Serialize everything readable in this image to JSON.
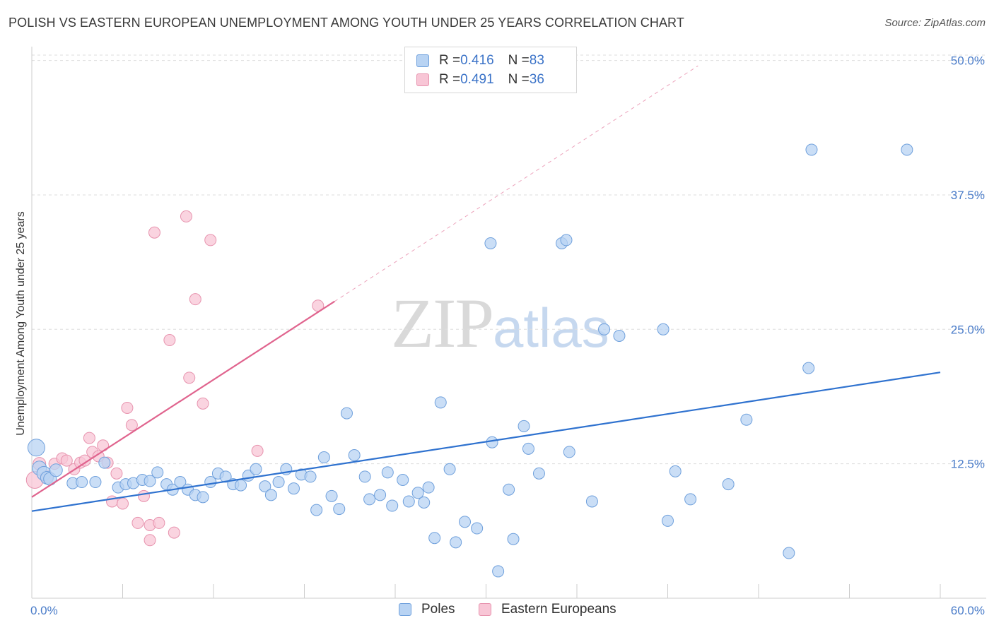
{
  "header": {
    "title": "POLISH VS EASTERN EUROPEAN UNEMPLOYMENT AMONG YOUTH UNDER 25 YEARS CORRELATION CHART",
    "source": "Source: ZipAtlas.com"
  },
  "watermark": {
    "part_a": "ZIP",
    "part_b": "atlas"
  },
  "legend_top": {
    "rows": [
      {
        "r_label": "R = ",
        "r_value": "0.416",
        "n_label": "N = ",
        "n_value": "83"
      },
      {
        "r_label": "R = ",
        "r_value": "0.491",
        "n_label": "N = ",
        "n_value": "36"
      }
    ]
  },
  "legend_bottom": {
    "items": [
      "Poles",
      "Eastern Europeans"
    ]
  },
  "colors": {
    "poles_fill": "#b8d3f3",
    "poles_stroke": "#6fa0dc",
    "poles_line": "#2f72cf",
    "ee_fill": "#f8c6d6",
    "ee_stroke": "#e793ae",
    "ee_line": "#e0648e",
    "grid": "#dddddd",
    "tick_text": "#4a7cc9"
  },
  "chart_data": {
    "type": "scatter",
    "title": "POLISH VS EASTERN EUROPEAN UNEMPLOYMENT AMONG YOUTH UNDER 25 YEARS CORRELATION CHART",
    "xlabel": "",
    "ylabel": "Unemployment Among Youth under 25 years",
    "xlim": [
      0,
      60
    ],
    "ylim": [
      0,
      50.5
    ],
    "x_tick_labels": {
      "min": "0.0%",
      "max": "60.0%"
    },
    "y_ticks": [
      {
        "value": 12.5,
        "label": "12.5%"
      },
      {
        "value": 25.0,
        "label": "25.0%"
      },
      {
        "value": 37.5,
        "label": "37.5%"
      },
      {
        "value": 50.0,
        "label": "50.0%"
      }
    ],
    "grid": true,
    "legend_position": "top-center",
    "series": [
      {
        "name": "Poles",
        "r": 0.416,
        "n": 83,
        "trend": {
          "x0": 0,
          "y0": 8.1,
          "x1": 60,
          "y1": 21.0
        },
        "points": [
          [
            0.3,
            14.0,
            12
          ],
          [
            0.5,
            12.1,
            10
          ],
          [
            0.8,
            11.6,
            10
          ],
          [
            1.0,
            11.2,
            9
          ],
          [
            1.2,
            11.1,
            9
          ],
          [
            1.6,
            11.9,
            9
          ],
          [
            2.7,
            10.7,
            8
          ],
          [
            3.3,
            10.8,
            8
          ],
          [
            4.2,
            10.8,
            8
          ],
          [
            4.8,
            12.6,
            8
          ],
          [
            5.7,
            10.3,
            8
          ],
          [
            6.2,
            10.6,
            8
          ],
          [
            6.7,
            10.7,
            8
          ],
          [
            7.3,
            11.0,
            8
          ],
          [
            7.8,
            10.9,
            8
          ],
          [
            8.3,
            11.7,
            8
          ],
          [
            8.9,
            10.6,
            8
          ],
          [
            9.3,
            10.1,
            8
          ],
          [
            9.8,
            10.8,
            8
          ],
          [
            10.3,
            10.1,
            8
          ],
          [
            10.8,
            9.6,
            8
          ],
          [
            11.3,
            9.4,
            8
          ],
          [
            11.8,
            10.8,
            8
          ],
          [
            12.3,
            11.6,
            8
          ],
          [
            12.8,
            11.3,
            8
          ],
          [
            13.3,
            10.6,
            8
          ],
          [
            13.8,
            10.5,
            8
          ],
          [
            14.3,
            11.4,
            8
          ],
          [
            14.8,
            12.0,
            8
          ],
          [
            15.4,
            10.4,
            8
          ],
          [
            15.8,
            9.6,
            8
          ],
          [
            16.3,
            10.8,
            8
          ],
          [
            16.8,
            12.0,
            8
          ],
          [
            17.3,
            10.2,
            8
          ],
          [
            17.8,
            11.5,
            8
          ],
          [
            18.4,
            11.3,
            8
          ],
          [
            18.8,
            8.2,
            8
          ],
          [
            19.3,
            13.1,
            8
          ],
          [
            19.8,
            9.5,
            8
          ],
          [
            20.3,
            8.3,
            8
          ],
          [
            20.8,
            17.2,
            8
          ],
          [
            21.3,
            13.3,
            8
          ],
          [
            22.0,
            11.3,
            8
          ],
          [
            22.3,
            9.2,
            8
          ],
          [
            23.0,
            9.6,
            8
          ],
          [
            23.5,
            11.7,
            8
          ],
          [
            23.8,
            8.6,
            8
          ],
          [
            24.5,
            11.0,
            8
          ],
          [
            24.9,
            9.0,
            8
          ],
          [
            25.5,
            9.8,
            8
          ],
          [
            25.9,
            8.9,
            8
          ],
          [
            26.2,
            10.3,
            8
          ],
          [
            26.6,
            5.6,
            8
          ],
          [
            27.0,
            18.2,
            8
          ],
          [
            27.6,
            12.0,
            8
          ],
          [
            28.0,
            5.2,
            8
          ],
          [
            28.6,
            7.1,
            8
          ],
          [
            29.4,
            6.5,
            8
          ],
          [
            30.3,
            33.0,
            8
          ],
          [
            30.4,
            14.5,
            8
          ],
          [
            30.8,
            2.5,
            8
          ],
          [
            31.5,
            10.1,
            8
          ],
          [
            31.8,
            5.5,
            8
          ],
          [
            32.5,
            16.0,
            8
          ],
          [
            32.8,
            13.9,
            8
          ],
          [
            33.5,
            11.6,
            8
          ],
          [
            35.0,
            33.0,
            8
          ],
          [
            35.3,
            33.3,
            8
          ],
          [
            35.5,
            13.6,
            8
          ],
          [
            37.0,
            9.0,
            8
          ],
          [
            37.8,
            25.0,
            8
          ],
          [
            38.8,
            24.4,
            8
          ],
          [
            41.7,
            25.0,
            8
          ],
          [
            42.0,
            7.2,
            8
          ],
          [
            42.5,
            11.8,
            8
          ],
          [
            43.5,
            9.2,
            8
          ],
          [
            46.0,
            10.6,
            8
          ],
          [
            47.2,
            16.6,
            8
          ],
          [
            50.0,
            4.2,
            8
          ],
          [
            51.3,
            21.4,
            8
          ],
          [
            51.5,
            41.7,
            8
          ],
          [
            57.8,
            41.7,
            8
          ]
        ]
      },
      {
        "name": "Eastern Europeans",
        "r": 0.491,
        "n": 36,
        "trend": {
          "x0": 0,
          "y0": 9.4,
          "x1": 20.0,
          "y1": 27.6
        },
        "trend_dashed": {
          "x0": 20.0,
          "y0": 27.6,
          "x1": 44.0,
          "y1": 49.5
        },
        "points": [
          [
            0.2,
            11.0,
            12
          ],
          [
            0.5,
            12.5,
            9
          ],
          [
            1.0,
            11.3,
            9
          ],
          [
            1.5,
            12.5,
            8
          ],
          [
            2.0,
            13.0,
            8
          ],
          [
            2.3,
            12.8,
            8
          ],
          [
            2.8,
            12.0,
            8
          ],
          [
            3.2,
            12.6,
            8
          ],
          [
            3.5,
            12.8,
            8
          ],
          [
            3.8,
            14.9,
            8
          ],
          [
            4.0,
            13.6,
            8
          ],
          [
            4.4,
            13.2,
            8
          ],
          [
            4.7,
            14.2,
            8
          ],
          [
            5.0,
            12.6,
            8
          ],
          [
            5.3,
            9.0,
            8
          ],
          [
            5.6,
            11.6,
            8
          ],
          [
            6.0,
            8.8,
            8
          ],
          [
            6.3,
            17.7,
            8
          ],
          [
            6.6,
            16.1,
            8
          ],
          [
            7.0,
            7.0,
            8
          ],
          [
            7.4,
            9.5,
            8
          ],
          [
            7.8,
            5.4,
            8
          ],
          [
            7.8,
            6.8,
            8
          ],
          [
            8.1,
            34.0,
            8
          ],
          [
            8.4,
            7.0,
            8
          ],
          [
            9.1,
            24.0,
            8
          ],
          [
            9.4,
            6.1,
            8
          ],
          [
            10.2,
            35.5,
            8
          ],
          [
            10.4,
            20.5,
            8
          ],
          [
            10.8,
            27.8,
            8
          ],
          [
            11.3,
            18.1,
            8
          ],
          [
            11.8,
            33.3,
            8
          ],
          [
            14.9,
            13.7,
            8
          ],
          [
            18.9,
            27.2,
            8
          ]
        ]
      }
    ]
  }
}
